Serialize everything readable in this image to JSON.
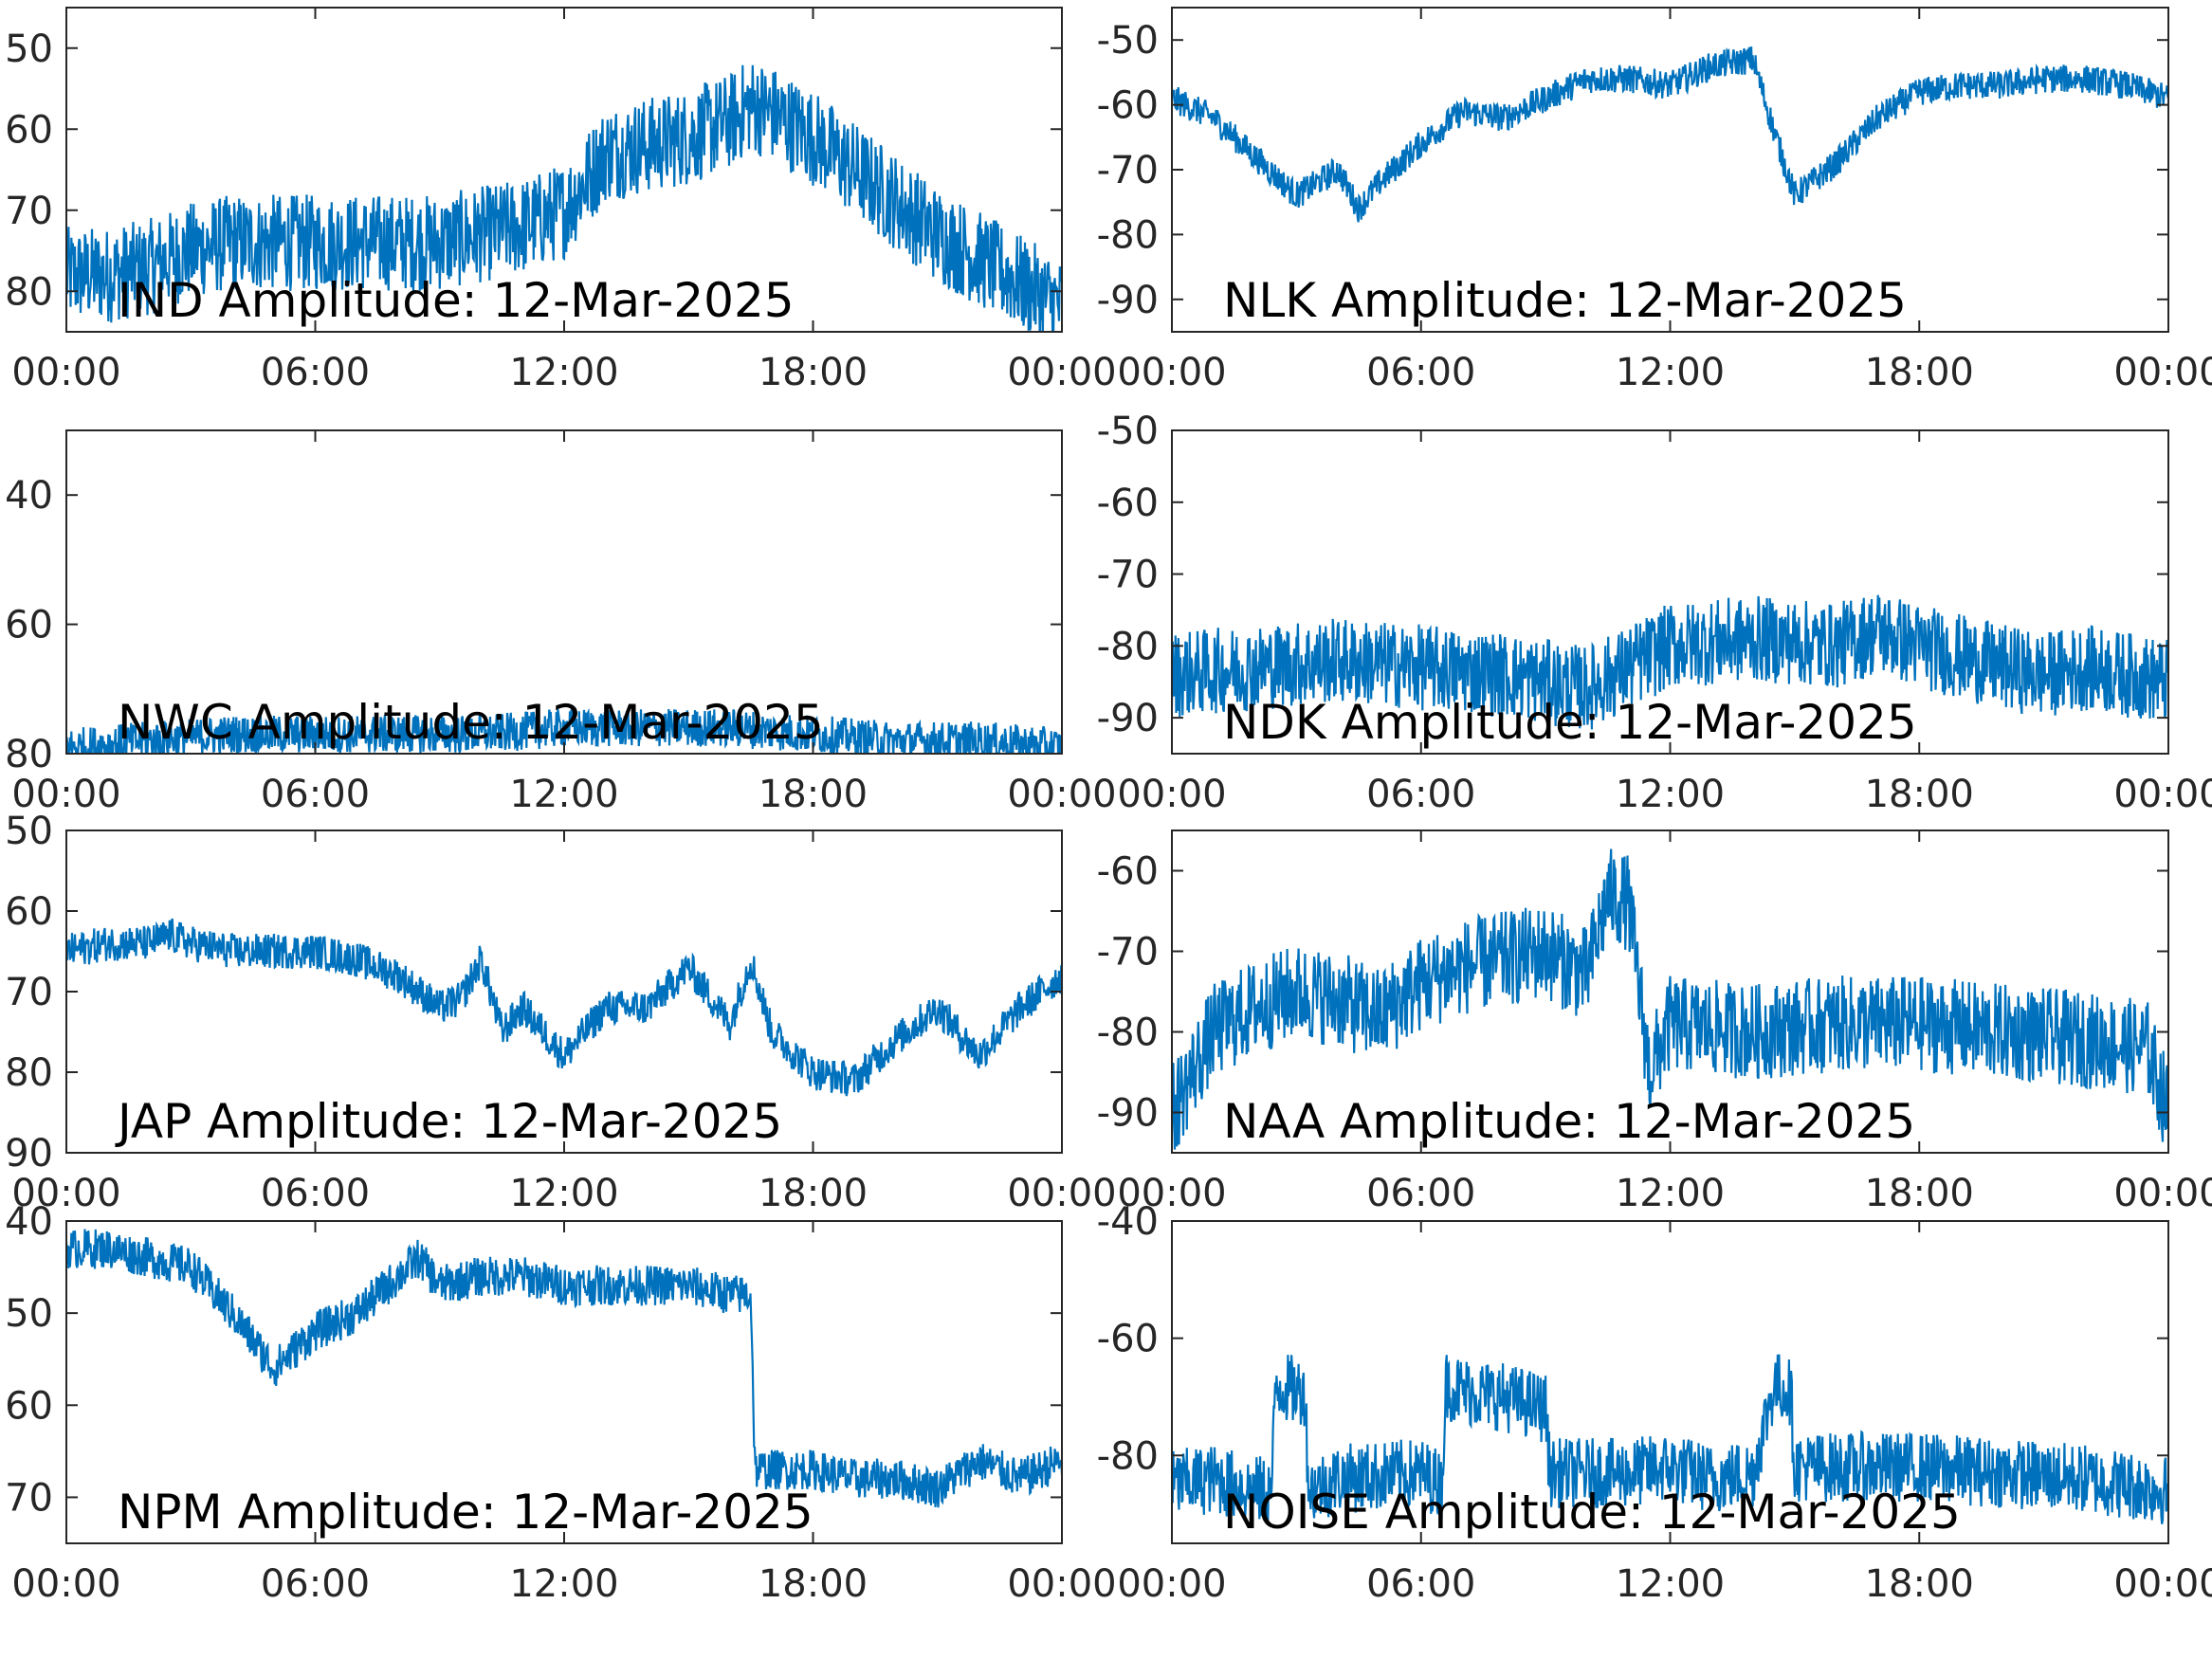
{
  "chart_data": [
    {
      "type": "line",
      "title": "IND Amplitude: 12-Mar-2025",
      "x_ticks": [
        "00:00",
        "06:00",
        "12:00",
        "18:00",
        "00:00"
      ],
      "y_ticks": [
        "50",
        "60",
        "70",
        "80"
      ],
      "ylim": [
        -85,
        -45
      ],
      "series": [
        {
          "color": "#0072BD",
          "x": [
            0,
            1,
            2,
            3,
            4,
            5,
            6,
            7,
            8,
            9,
            10,
            11,
            12,
            13,
            14,
            15,
            16,
            16.5,
            17,
            18,
            19,
            20,
            21,
            22,
            23,
            24
          ],
          "y": [
            -78,
            -78,
            -77,
            -75,
            -74,
            -74,
            -74,
            -74,
            -74,
            -74,
            -73,
            -72,
            -70,
            -63,
            -62,
            -61,
            -59,
            -57,
            -58,
            -61,
            -65,
            -69,
            -73,
            -76,
            -79,
            -82
          ]
        }
      ]
    },
    {
      "type": "line",
      "title": "NLK Amplitude: 12-Mar-2025",
      "x_ticks": [
        "00:00",
        "06:00",
        "12:00",
        "18:00",
        "00:00"
      ],
      "y_ticks": [
        "-50",
        "-60",
        "-70",
        "-80",
        "-90"
      ],
      "ylim": [
        -95,
        -45
      ],
      "series": [
        {
          "color": "#0072BD",
          "x": [
            0,
            1,
            2,
            3,
            4,
            4.5,
            5,
            6,
            7,
            8,
            9,
            10,
            11,
            12,
            13,
            14,
            14.5,
            15,
            16,
            17,
            18,
            19,
            20,
            21,
            22,
            23,
            24
          ],
          "y": [
            -59,
            -62,
            -68,
            -74,
            -70,
            -76,
            -72,
            -66,
            -61,
            -62,
            -59,
            -56,
            -56,
            -57,
            -54,
            -53,
            -64,
            -74,
            -69,
            -62,
            -58,
            -57,
            -57,
            -56,
            -56,
            -57,
            -59
          ]
        }
      ]
    },
    {
      "type": "line",
      "title": "NWC Amplitude: 12-Mar-2025",
      "x_ticks": [
        "00:00",
        "06:00",
        "12:00",
        "18:00",
        "00:00"
      ],
      "y_ticks": [
        "40",
        "60",
        "80"
      ],
      "ylim": [
        -80,
        -30
      ],
      "series": [
        {
          "color": "#0072BD",
          "x": [
            0,
            2,
            4,
            6,
            8,
            10,
            12,
            14,
            16,
            18,
            20,
            22,
            24
          ],
          "y": [
            -79,
            -78,
            -77,
            -77,
            -77,
            -77,
            -76,
            -76,
            -76,
            -77,
            -78,
            -78,
            -79
          ]
        }
      ]
    },
    {
      "type": "line",
      "title": "NDK Amplitude: 12-Mar-2025",
      "x_ticks": [
        "00:00",
        "06:00",
        "12:00",
        "18:00",
        "00:00"
      ],
      "y_ticks": [
        "-50",
        "-60",
        "-70",
        "-80",
        "-90"
      ],
      "ylim": [
        -95,
        -50
      ],
      "series": [
        {
          "color": "#0072BD",
          "x": [
            0,
            2,
            4,
            6,
            8,
            10,
            11,
            12,
            14,
            16,
            17,
            18,
            20,
            21,
            22,
            24
          ],
          "y": [
            -84,
            -83,
            -82,
            -83,
            -84,
            -86,
            -83,
            -80,
            -79,
            -80,
            -78,
            -80,
            -83,
            -84,
            -83,
            -85
          ]
        }
      ]
    },
    {
      "type": "line",
      "title": "JAP Amplitude: 12-Mar-2025",
      "x_ticks": [
        "00:00",
        "06:00",
        "12:00",
        "18:00",
        "00:00"
      ],
      "y_ticks": [
        "50",
        "60",
        "70",
        "80",
        "90"
      ],
      "ylim": [
        -90,
        -50
      ],
      "series": [
        {
          "color": "#0072BD",
          "x": [
            0,
            1,
            2,
            2.5,
            3,
            4,
            5,
            6,
            7,
            8,
            9,
            9.5,
            10,
            10.5,
            11,
            12,
            13,
            14,
            15,
            16,
            16.5,
            17,
            18,
            19,
            20,
            21,
            22,
            23,
            24
          ],
          "y": [
            -65,
            -64,
            -64,
            -63,
            -64,
            -65,
            -65,
            -65,
            -66,
            -68,
            -72,
            -71,
            -66,
            -75,
            -72,
            -78,
            -72,
            -72,
            -67,
            -74,
            -66,
            -75,
            -80,
            -81,
            -76,
            -72,
            -78,
            -72,
            -68
          ]
        }
      ]
    },
    {
      "type": "line",
      "title": "NAA Amplitude: 12-Mar-2025",
      "x_ticks": [
        "00:00",
        "06:00",
        "12:00",
        "18:00",
        "00:00"
      ],
      "y_ticks": [
        "-60",
        "-70",
        "-80",
        "-90"
      ],
      "ylim": [
        -95,
        -55
      ],
      "series": [
        {
          "color": "#0072BD",
          "x": [
            0,
            1,
            2,
            3,
            4,
            5,
            6,
            7,
            8,
            9,
            10,
            10.5,
            11,
            11.5,
            12,
            14,
            16,
            18,
            20,
            22,
            23.5,
            24
          ],
          "y": [
            -90,
            -80,
            -77,
            -75,
            -76,
            -78,
            -74,
            -72,
            -71,
            -70,
            -73,
            -63,
            -64,
            -85,
            -79,
            -80,
            -79,
            -79,
            -80,
            -81,
            -82,
            -90
          ]
        }
      ]
    },
    {
      "type": "line",
      "title": "NPM Amplitude: 12-Mar-2025",
      "x_ticks": [
        "00:00",
        "06:00",
        "12:00",
        "18:00",
        "00:00"
      ],
      "y_ticks": [
        "40",
        "50",
        "60",
        "70"
      ],
      "ylim": [
        -75,
        -40
      ],
      "series": [
        {
          "color": "#0072BD",
          "x": [
            0,
            1,
            2,
            3,
            4,
            5,
            6,
            7,
            8,
            8.5,
            9,
            10,
            11,
            12,
            13,
            14,
            15,
            16,
            16.5,
            16.6,
            17,
            18,
            19,
            20,
            21,
            22,
            23,
            24
          ],
          "y": [
            -43,
            -43,
            -44,
            -45,
            -50,
            -56,
            -52,
            -50,
            -46,
            -44,
            -47,
            -46,
            -46,
            -47,
            -47,
            -47,
            -47,
            -48,
            -48,
            -67,
            -67,
            -67,
            -68,
            -68,
            -69,
            -66,
            -68,
            -66
          ]
        }
      ]
    },
    {
      "type": "line",
      "title": "NOISE Amplitude: 12-Mar-2025",
      "x_ticks": [
        "00:00",
        "06:00",
        "12:00",
        "18:00",
        "00:00"
      ],
      "y_ticks": [
        "-40",
        "-60",
        "-80"
      ],
      "ylim": [
        -95,
        -40
      ],
      "series": [
        {
          "color": "#0072BD",
          "x": [
            0,
            1,
            2,
            2.4,
            2.5,
            3,
            3.2,
            3.3,
            4,
            6,
            6.5,
            6.6,
            7,
            8,
            9,
            9.1,
            10,
            11,
            12,
            13,
            14,
            14.5,
            14.9,
            15,
            16,
            18,
            20,
            22,
            24
          ],
          "y": [
            -85,
            -84,
            -86,
            -86,
            -68,
            -69,
            -69,
            -86,
            -84,
            -83,
            -85,
            -68,
            -69,
            -70,
            -72,
            -83,
            -83,
            -83,
            -82,
            -84,
            -83,
            -68,
            -69,
            -82,
            -82,
            -82,
            -83,
            -84,
            -86
          ]
        }
      ]
    }
  ]
}
